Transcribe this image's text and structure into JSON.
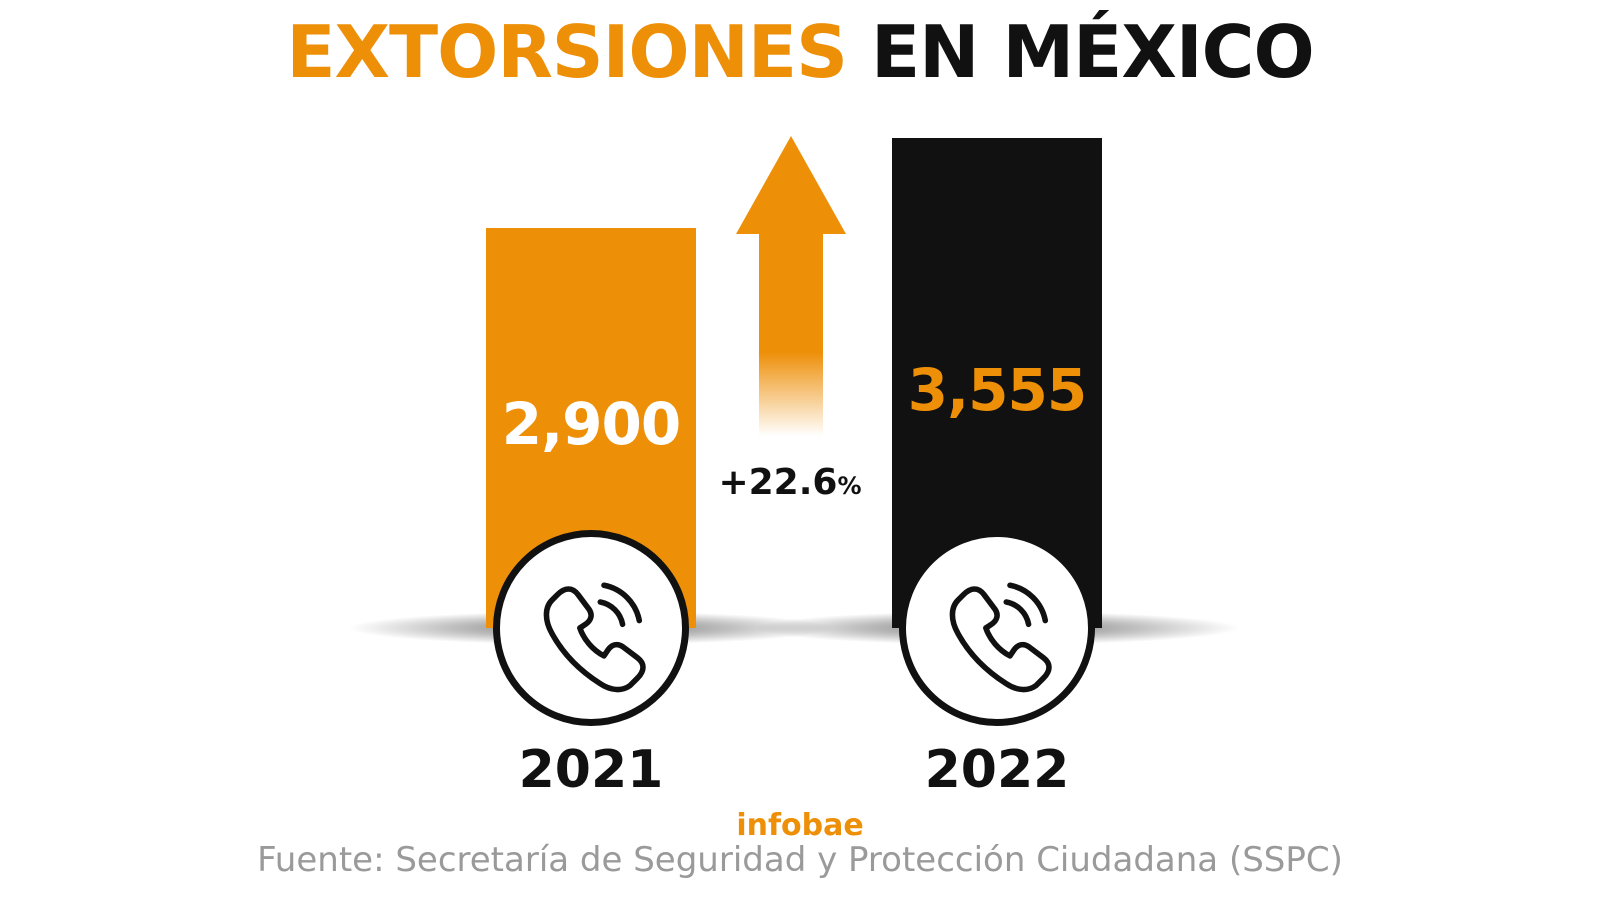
{
  "title": {
    "part1": "EXTORSIONES",
    "part2": "EN MÉXICO"
  },
  "colors": {
    "accent": "#EE8F08",
    "dark": "#111111",
    "source": "#9a9a9a",
    "white": "#ffffff"
  },
  "chart_data": {
    "type": "bar",
    "categories": [
      "2021",
      "2022"
    ],
    "values": [
      2900,
      3555
    ],
    "value_labels": [
      "2,900",
      "3,555"
    ],
    "bar_colors": [
      "#EE8F08",
      "#111111"
    ],
    "value_label_colors": [
      "#ffffff",
      "#EE8F08"
    ],
    "change_label": "+22.6",
    "change_unit": "%",
    "icons": [
      "phone-icon",
      "phone-icon"
    ]
  },
  "brand": "infobae",
  "source": "Fuente: Secretaría de Seguridad y Protección Ciudadana (SSPC)"
}
